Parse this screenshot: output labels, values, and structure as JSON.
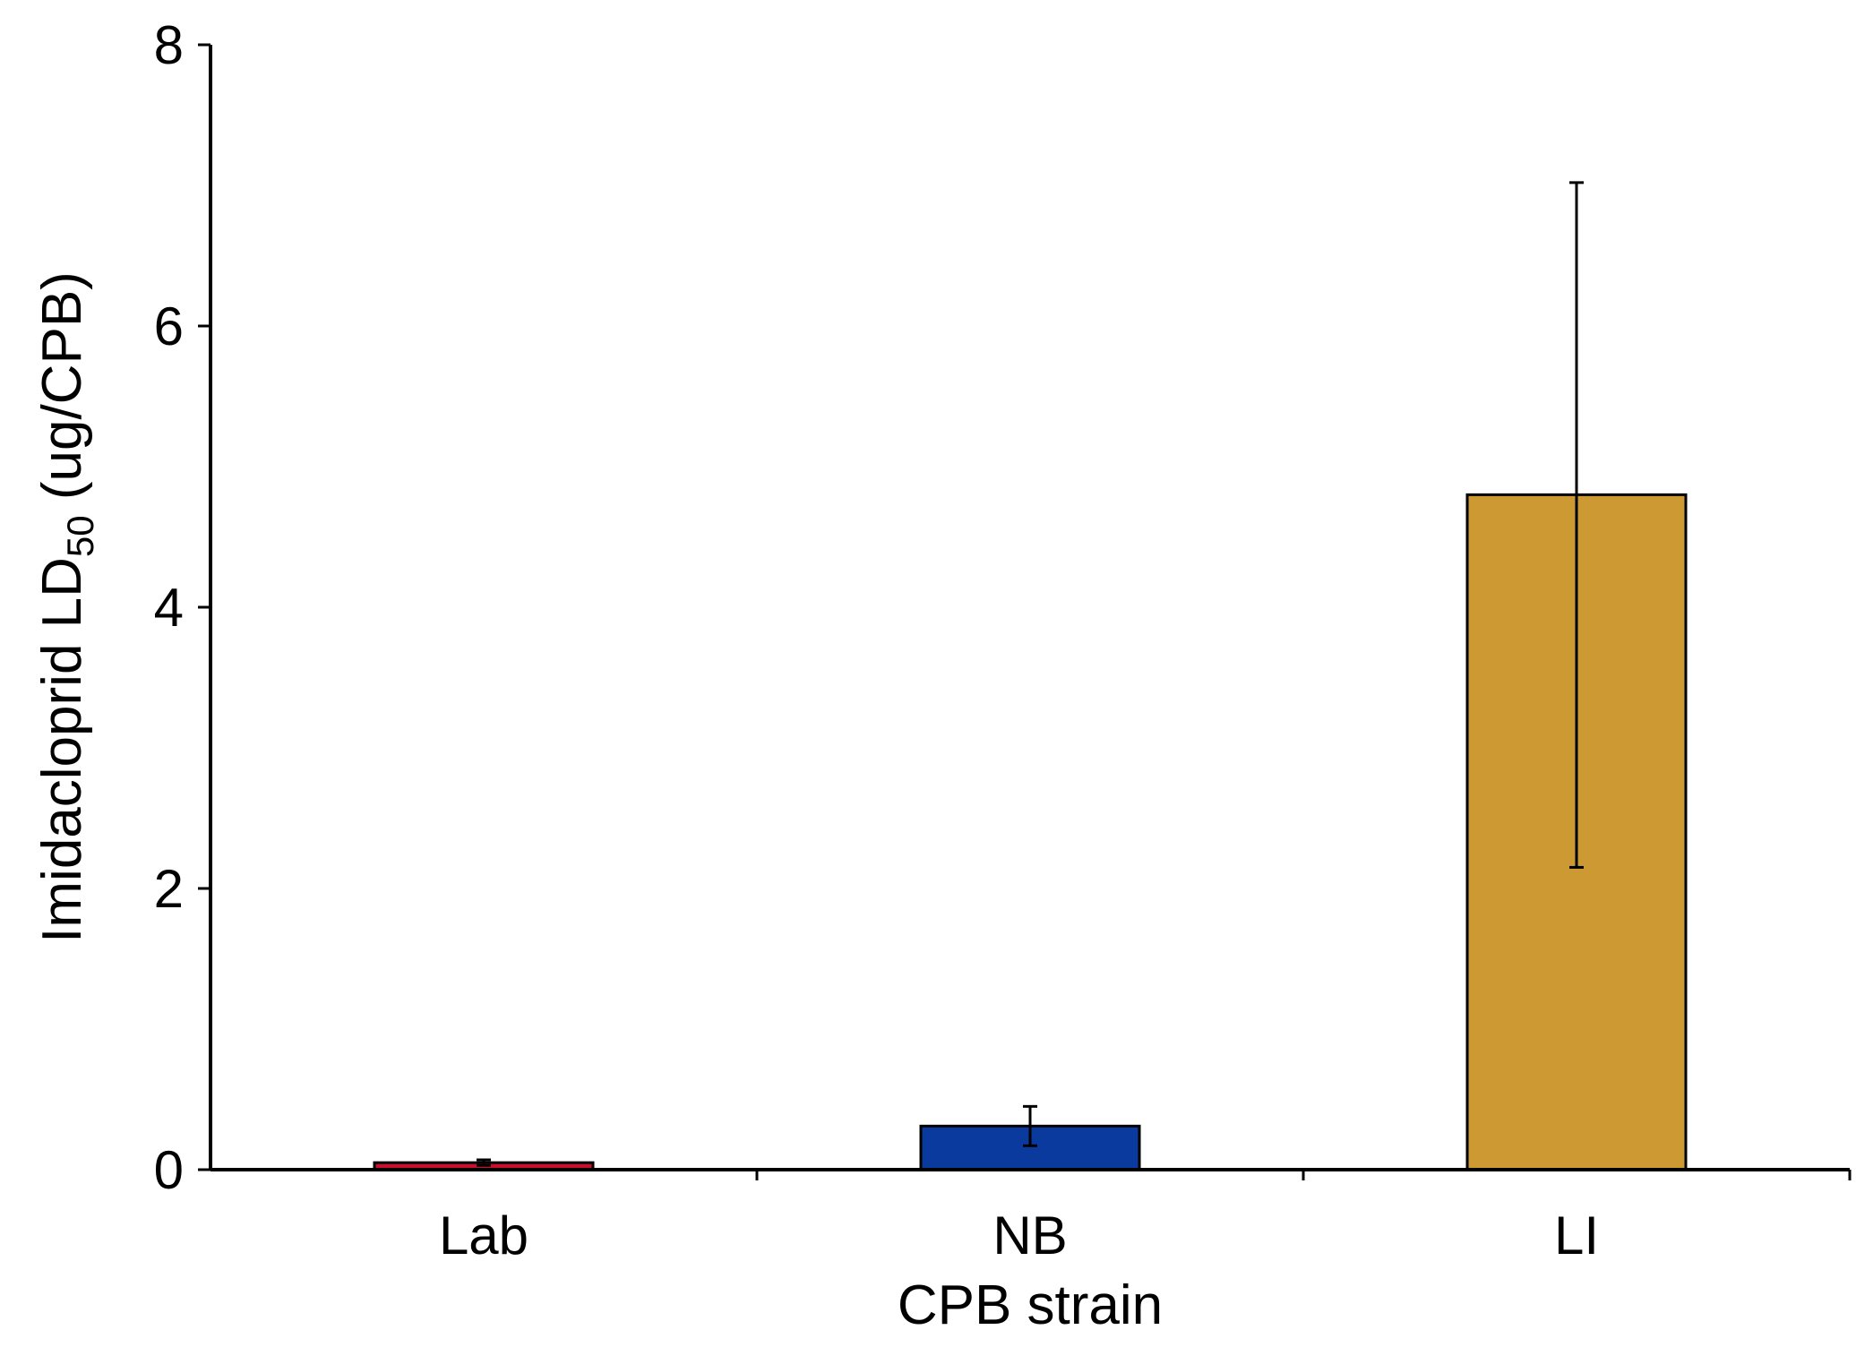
{
  "chart_data": {
    "type": "bar",
    "title": "",
    "xlabel": "CPB strain",
    "ylabel": {
      "prefix": "Imidacloprid LD",
      "subscript": "50",
      "suffix": " (ug/CPB)"
    },
    "ylim": [
      0,
      8
    ],
    "yticks": [
      "0",
      "2",
      "4",
      "6",
      "8"
    ],
    "grid": false,
    "categories": [
      "Lab",
      "NB",
      "LI"
    ],
    "values": [
      0.05,
      0.31,
      4.8
    ],
    "errors": [
      {
        "low": 0.03,
        "high": 0.07
      },
      {
        "low": 0.17,
        "high": 0.45
      },
      {
        "low": 2.15,
        "high": 7.02
      }
    ],
    "colors": [
      "#c8102e",
      "#0a3a9e",
      "#cc9933"
    ]
  }
}
